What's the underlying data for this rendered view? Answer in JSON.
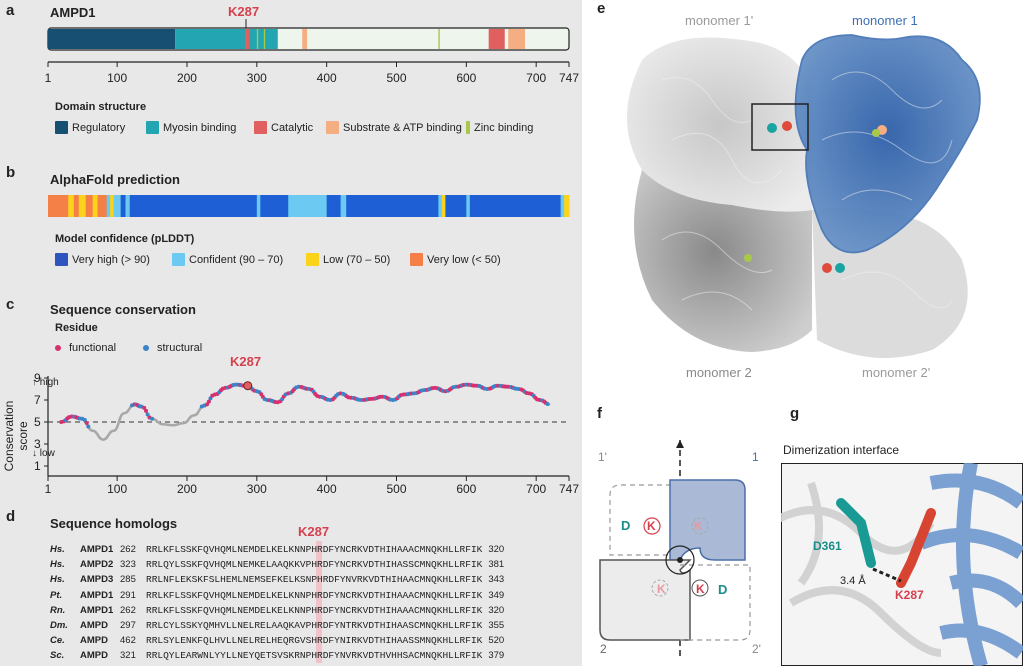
{
  "panel_a": {
    "label": "a",
    "title": "AMPD1",
    "marker": "K287",
    "ticks": [
      "1",
      "100",
      "200",
      "300",
      "400",
      "500",
      "600",
      "700",
      "747"
    ],
    "legend_title": "Domain structure",
    "legend": [
      {
        "label": "Regulatory",
        "color": "#174f72"
      },
      {
        "label": "Myosin binding",
        "color": "#23a6b2"
      },
      {
        "label": "Catalytic",
        "color": "#e06060"
      },
      {
        "label": "Substrate & ATP binding",
        "color": "#f4ae82"
      },
      {
        "label": "Zinc binding",
        "color": "#a8c84a"
      }
    ]
  },
  "panel_b": {
    "label": "b",
    "title": "AlphaFold prediction",
    "legend_title": "Model confidence (pLDDT)",
    "legend": [
      {
        "label": "Very high (> 90)",
        "color": "#2e55bd"
      },
      {
        "label": "Confident (90 – 70)",
        "color": "#6ccaf2"
      },
      {
        "label": "Low (70 – 50)",
        "color": "#fad31a"
      },
      {
        "label": "Very low (< 50)",
        "color": "#f48048"
      }
    ]
  },
  "panel_c": {
    "label": "c",
    "title": "Sequence conservation",
    "residue_title": "Residue",
    "legend": [
      {
        "label": "functional",
        "color": "#d6306f"
      },
      {
        "label": "structural",
        "color": "#3a84c7"
      }
    ],
    "marker": "K287",
    "ylabel": "Conservation score",
    "high": "high",
    "low": "low",
    "yticks": [
      "9",
      "7",
      "5",
      "3",
      "1"
    ],
    "xticks": [
      "1",
      "100",
      "200",
      "300",
      "400",
      "500",
      "600",
      "700",
      "747"
    ]
  },
  "chart_data": {
    "type": "line",
    "xlabel": "",
    "ylabel": "Conservation score",
    "xlim": [
      1,
      747
    ],
    "ylim": [
      1,
      9
    ],
    "reference_line": 5,
    "x": [
      20,
      35,
      50,
      65,
      80,
      95,
      110,
      125,
      135,
      150,
      165,
      180,
      195,
      210,
      225,
      240,
      255,
      270,
      285,
      300,
      315,
      330,
      345,
      360,
      375,
      390,
      405,
      420,
      435,
      450,
      465,
      480,
      495,
      510,
      525,
      540,
      555,
      570,
      585,
      600,
      615,
      630,
      645,
      660,
      675,
      690,
      705,
      720
    ],
    "values": [
      5.0,
      5.5,
      5.3,
      4.2,
      3.4,
      4.2,
      5.8,
      6.6,
      6.4,
      5.3,
      4.8,
      4.7,
      4.9,
      5.6,
      6.5,
      7.5,
      8.1,
      8.4,
      8.3,
      7.8,
      7.0,
      6.8,
      7.6,
      8.2,
      8.0,
      7.3,
      7.0,
      7.6,
      7.2,
      7.0,
      7.1,
      7.3,
      7.0,
      7.5,
      7.6,
      7.9,
      8.1,
      7.8,
      8.2,
      8.4,
      8.3,
      8.0,
      8.3,
      8.2,
      8.0,
      7.6,
      7.0,
      6.6
    ]
  },
  "panel_d": {
    "label": "d",
    "title": "Sequence homologs",
    "marker": "K287",
    "rows": [
      {
        "sp": "Hs.",
        "gene": "AMPD1",
        "start": "262",
        "seq": "RRLKFLSSKFQVHQMLNEMDELKELKNNPHRDFYNCRKVDTHIHAAACMNQKHLLRFIK",
        "end": "320"
      },
      {
        "sp": "Hs.",
        "gene": "AMPD2",
        "start": "323",
        "seq": "RRLQYLSSKFQVHQMLNEMKELAAQKKVPHRDFYNCRKVDTHIHASSCMNQKHLLRFIK",
        "end": "381"
      },
      {
        "sp": "Hs.",
        "gene": "AMPD3",
        "start": "285",
        "seq": "RRLNFLEKSKFSLHEMLNEMSEFKELKSNPHRDFYNVRKVDTHIHAACMNQKHLLRFIK",
        "end": "343"
      },
      {
        "sp": "Pt.",
        "gene": "AMPD1",
        "start": "291",
        "seq": "RRLKFLSSKFQVHQMLNEMDELKELKNNPHRDFYNCRKVDTHIHAAACMNQKHLLRFIK",
        "end": "349"
      },
      {
        "sp": "Rn.",
        "gene": "AMPD1",
        "start": "262",
        "seq": "RRLKFLSSKFQVHQMLNEMDELKELKNNPHRDFYNCRKVDTHIHAAACMNQKHLLRFIK",
        "end": "320"
      },
      {
        "sp": "Dm.",
        "gene": "AMPD",
        "start": "297",
        "seq": "RRLCYLSSKYQMHVLLNELRELAAQKAVPHRDFYNTRKVDTHIHAASCMNQKHLLRFIK",
        "end": "355"
      },
      {
        "sp": "Ce.",
        "gene": "AMPD",
        "start": "462",
        "seq": "RRLSYLENKFQLHVLLNELRELHEQRGVSHRDFYNIRKVDTHIHAASSMNQKHLLRFIK",
        "end": "520"
      },
      {
        "sp": "Sc.",
        "gene": "AMPD",
        "start": "321",
        "seq": "RRLQYLEARWNLYYLLNEYQETSVSKRNPHRDFYNVRKVDTHVHHSACMNQKHLLRFIK",
        "end": "379"
      }
    ]
  },
  "panel_e": {
    "label": "e",
    "m1p": "monomer 1'",
    "m1": "monomer 1",
    "m2": "monomer 2",
    "m2p": "monomer 2'"
  },
  "panel_f": {
    "label": "f",
    "q1p": "1'",
    "q1": "1",
    "q2": "2",
    "q2p": "2'",
    "d": "D",
    "k": "K"
  },
  "panel_g": {
    "label": "g",
    "title": "Dimerization interface",
    "d361": "D361",
    "dist": "3.4 Å",
    "k287": "K287"
  }
}
